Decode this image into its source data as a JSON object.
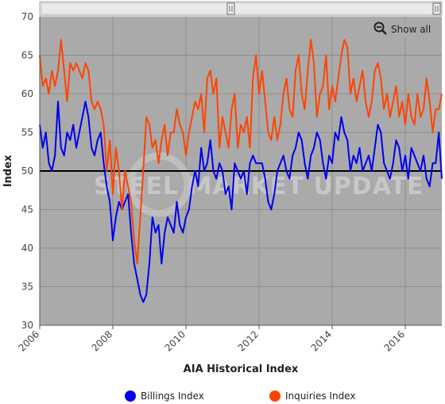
{
  "chart_data": {
    "type": "line",
    "title": "",
    "xlabel": "AIA Historical Index",
    "ylabel": "Index",
    "ylim": [
      30,
      70
    ],
    "xlim": [
      2006,
      2017
    ],
    "grid": true,
    "legend_position": "bottom",
    "x_ticks": [
      "2006",
      "2008",
      "2010",
      "2012",
      "2014",
      "2016"
    ],
    "y_ticks": [
      "30",
      "35",
      "40",
      "45",
      "50",
      "55",
      "60",
      "65",
      "70"
    ],
    "reference_line": 50,
    "series": [
      {
        "name": "Billings Index",
        "color": "#0000ee",
        "x": [
          2006.0,
          2006.083,
          2006.167,
          2006.25,
          2006.333,
          2006.417,
          2006.5,
          2006.583,
          2006.667,
          2006.75,
          2006.833,
          2006.917,
          2007.0,
          2007.083,
          2007.167,
          2007.25,
          2007.333,
          2007.417,
          2007.5,
          2007.583,
          2007.667,
          2007.75,
          2007.833,
          2007.917,
          2008.0,
          2008.083,
          2008.167,
          2008.25,
          2008.333,
          2008.417,
          2008.5,
          2008.583,
          2008.667,
          2008.75,
          2008.833,
          2008.917,
          2009.0,
          2009.083,
          2009.167,
          2009.25,
          2009.333,
          2009.417,
          2009.5,
          2009.583,
          2009.667,
          2009.75,
          2009.833,
          2009.917,
          2010.0,
          2010.083,
          2010.167,
          2010.25,
          2010.333,
          2010.417,
          2010.5,
          2010.583,
          2010.667,
          2010.75,
          2010.833,
          2010.917,
          2011.0,
          2011.083,
          2011.167,
          2011.25,
          2011.333,
          2011.417,
          2011.5,
          2011.583,
          2011.667,
          2011.75,
          2011.833,
          2011.917,
          2012.0,
          2012.083,
          2012.167,
          2012.25,
          2012.333,
          2012.417,
          2012.5,
          2012.583,
          2012.667,
          2012.75,
          2012.833,
          2012.917,
          2013.0,
          2013.083,
          2013.167,
          2013.25,
          2013.333,
          2013.417,
          2013.5,
          2013.583,
          2013.667,
          2013.75,
          2013.833,
          2013.917,
          2014.0,
          2014.083,
          2014.167,
          2014.25,
          2014.333,
          2014.417,
          2014.5,
          2014.583,
          2014.667,
          2014.75,
          2014.833,
          2014.917,
          2015.0,
          2015.083,
          2015.167,
          2015.25,
          2015.333,
          2015.417,
          2015.5,
          2015.583,
          2015.667,
          2015.75,
          2015.833,
          2015.917,
          2016.0,
          2016.083,
          2016.167,
          2016.25,
          2016.333,
          2016.417,
          2016.5,
          2016.583,
          2016.667,
          2016.75,
          2016.833,
          2016.917,
          2017.0
        ],
        "values": [
          56,
          53,
          55,
          51,
          50,
          52,
          59,
          53,
          52,
          55,
          54,
          56,
          53,
          55,
          57,
          59,
          57,
          53,
          52,
          54,
          55,
          51,
          48,
          46,
          41,
          44,
          46,
          45,
          46,
          47,
          42,
          38,
          36,
          34,
          33,
          34,
          38,
          44,
          42,
          43,
          38,
          42,
          44,
          43,
          42,
          46,
          43,
          42,
          44,
          45,
          48,
          50,
          48,
          53,
          50,
          51,
          54,
          50,
          49,
          51,
          50,
          47,
          48,
          45,
          51,
          50,
          49,
          50,
          47,
          51,
          52,
          51,
          51,
          51,
          49,
          46,
          45,
          47,
          50,
          51,
          52,
          50,
          49,
          52,
          53,
          55,
          54,
          51,
          49,
          52,
          53,
          55,
          54,
          51,
          49,
          52,
          51,
          55,
          54,
          57,
          55,
          54,
          50,
          52,
          51,
          53,
          50,
          51,
          52,
          50,
          53,
          56,
          55,
          51,
          50,
          49,
          51,
          54,
          53,
          50,
          52,
          49,
          53,
          52,
          51,
          50,
          52,
          49,
          48,
          51,
          51,
          55,
          49
        ]
      },
      {
        "name": "Inquiries Index",
        "color": "#ff4400",
        "x": [
          2006.0,
          2006.083,
          2006.167,
          2006.25,
          2006.333,
          2006.417,
          2006.5,
          2006.583,
          2006.667,
          2006.75,
          2006.833,
          2006.917,
          2007.0,
          2007.083,
          2007.167,
          2007.25,
          2007.333,
          2007.417,
          2007.5,
          2007.583,
          2007.667,
          2007.75,
          2007.833,
          2007.917,
          2008.0,
          2008.083,
          2008.167,
          2008.25,
          2008.333,
          2008.417,
          2008.5,
          2008.583,
          2008.667,
          2008.75,
          2008.833,
          2008.917,
          2009.0,
          2009.083,
          2009.167,
          2009.25,
          2009.333,
          2009.417,
          2009.5,
          2009.583,
          2009.667,
          2009.75,
          2009.833,
          2009.917,
          2010.0,
          2010.083,
          2010.167,
          2010.25,
          2010.333,
          2010.417,
          2010.5,
          2010.583,
          2010.667,
          2010.75,
          2010.833,
          2010.917,
          2011.0,
          2011.083,
          2011.167,
          2011.25,
          2011.333,
          2011.417,
          2011.5,
          2011.583,
          2011.667,
          2011.75,
          2011.833,
          2011.917,
          2012.0,
          2012.083,
          2012.167,
          2012.25,
          2012.333,
          2012.417,
          2012.5,
          2012.583,
          2012.667,
          2012.75,
          2012.833,
          2012.917,
          2013.0,
          2013.083,
          2013.167,
          2013.25,
          2013.333,
          2013.417,
          2013.5,
          2013.583,
          2013.667,
          2013.75,
          2013.833,
          2013.917,
          2014.0,
          2014.083,
          2014.167,
          2014.25,
          2014.333,
          2014.417,
          2014.5,
          2014.583,
          2014.667,
          2014.75,
          2014.833,
          2014.917,
          2015.0,
          2015.083,
          2015.167,
          2015.25,
          2015.333,
          2015.417,
          2015.5,
          2015.583,
          2015.667,
          2015.75,
          2015.833,
          2015.917,
          2016.0,
          2016.083,
          2016.167,
          2016.25,
          2016.333,
          2016.417,
          2016.5,
          2016.583,
          2016.667,
          2016.75,
          2016.833,
          2016.917,
          2017.0
        ],
        "values": [
          65,
          61,
          62,
          60,
          63,
          61,
          63,
          67,
          63,
          59,
          64,
          63,
          64,
          63,
          62,
          64,
          63,
          59,
          58,
          59,
          58,
          56,
          50,
          54,
          47,
          53,
          50,
          45,
          50,
          48,
          46,
          41,
          38,
          44,
          50,
          57,
          56,
          53,
          54,
          51,
          54,
          56,
          52,
          55,
          55,
          58,
          56,
          55,
          52,
          55,
          57,
          59,
          58,
          60,
          55,
          62,
          63,
          60,
          62,
          53,
          57,
          55,
          53,
          58,
          60,
          53,
          56,
          55,
          57,
          53,
          62,
          65,
          60,
          63,
          59,
          55,
          54,
          57,
          54,
          56,
          60,
          62,
          58,
          57,
          63,
          65,
          60,
          58,
          63,
          67,
          64,
          57,
          60,
          61,
          65,
          58,
          61,
          59,
          62,
          65,
          67,
          66,
          60,
          62,
          59,
          61,
          63,
          59,
          57,
          59,
          63,
          64,
          62,
          58,
          60,
          57,
          59,
          61,
          57,
          59,
          56,
          60,
          57,
          56,
          60,
          57,
          58,
          62,
          59,
          55,
          58,
          58,
          60
        ]
      }
    ]
  },
  "ui": {
    "show_all_label": "Show all",
    "watermark": "STEEL MARKET UPDATE"
  }
}
